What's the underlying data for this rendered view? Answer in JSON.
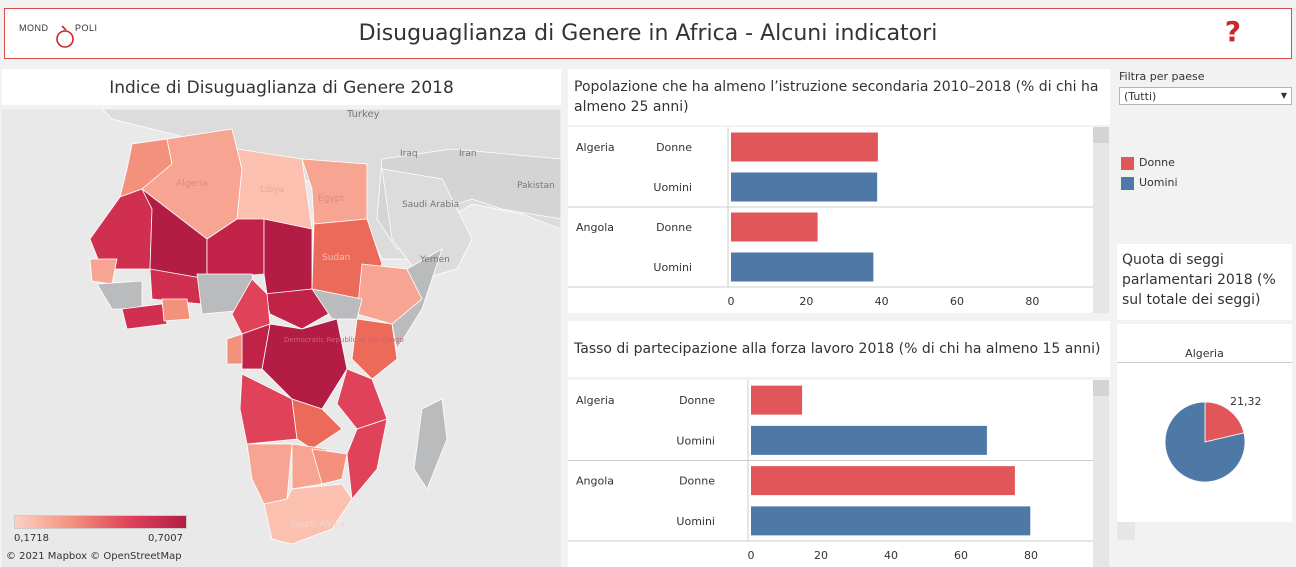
{
  "header": {
    "logo_left": "MOND",
    "logo_right": "POLI",
    "title": "Disuguaglianza di Genere in Africa -  Alcuni indicatori",
    "help_label": "?"
  },
  "map": {
    "title": "Indice di Disuguaglianza di Genere 2018",
    "labels": {
      "turkey": "Turkey",
      "iraq": "Iraq",
      "iran": "Iran",
      "pakistan": "Pakistan",
      "saudi": "Saudi Arabia",
      "yemen": "Yemen",
      "algeria": "Algeria",
      "libya": "Libya",
      "egypt": "Egypt",
      "sudan": "Sudan",
      "drc": "Democratic Republic of the Congo",
      "south_africa": "South Africa"
    },
    "legend_min": "0,1718",
    "legend_max": "0,7007",
    "attribution": "© 2021 Mapbox  © OpenStreetMap",
    "colors": {
      "low": "#fcd0c5",
      "mid": "#f4917d",
      "high": "#e0425a",
      "max": "#b31d45",
      "nodata": "#b9bbbc",
      "water": "#e9e9e9",
      "land": "#dcdcdc"
    }
  },
  "education": {
    "title": "Popolazione che ha almeno l’istruzione secondaria 2010–2018 (% di chi ha almeno 25 anni)",
    "axis_ticks": [
      "0",
      "20",
      "40",
      "60",
      "80"
    ]
  },
  "labor": {
    "title": "Tasso di partecipazione alla forza lavoro 2018 (% di chi ha almeno 15 anni)",
    "axis_ticks": [
      "0",
      "20",
      "40",
      "60",
      "80"
    ]
  },
  "filter": {
    "label": "Filtra per paese",
    "selected": "(Tutti)"
  },
  "legend": {
    "women": {
      "label": "Donne",
      "color": "#e15759"
    },
    "men": {
      "label": "Uomini",
      "color": "#4e79a7"
    }
  },
  "seats": {
    "title": "Quota di seggi parlamentari 2018 (% sul totale dei seggi)",
    "country": "Algeria",
    "value_label": "21,32"
  },
  "chart_data": [
    {
      "type": "bar",
      "orientation": "horizontal",
      "title": "Popolazione che ha almeno l’istruzione secondaria 2010–2018 (% di chi ha almeno 25 anni)",
      "categories": [
        "Algeria",
        "Angola"
      ],
      "series": [
        {
          "name": "Donne",
          "values": [
            39,
            23
          ]
        },
        {
          "name": "Uomini",
          "values": [
            38.8,
            37.8
          ]
        }
      ],
      "xlim": [
        0,
        90
      ],
      "ticks": [
        0,
        20,
        40,
        60,
        80
      ]
    },
    {
      "type": "bar",
      "orientation": "horizontal",
      "title": "Tasso di partecipazione alla forza lavoro 2018 (% di chi ha almeno 15 anni)",
      "categories": [
        "Algeria",
        "Angola"
      ],
      "series": [
        {
          "name": "Donne",
          "values": [
            14.6,
            75.4
          ]
        },
        {
          "name": "Uomini",
          "values": [
            67.4,
            79.8
          ]
        }
      ],
      "xlim": [
        0,
        92
      ],
      "ticks": [
        0,
        20,
        40,
        60,
        80
      ]
    },
    {
      "type": "pie",
      "title": "Quota di seggi parlamentari 2018 (% sul totale dei seggi)",
      "category": "Algeria",
      "slices": [
        {
          "name": "Donne",
          "value": 21.32
        },
        {
          "name": "Uomini",
          "value": 78.68
        }
      ],
      "data_labels": [
        "21,32"
      ]
    }
  ]
}
